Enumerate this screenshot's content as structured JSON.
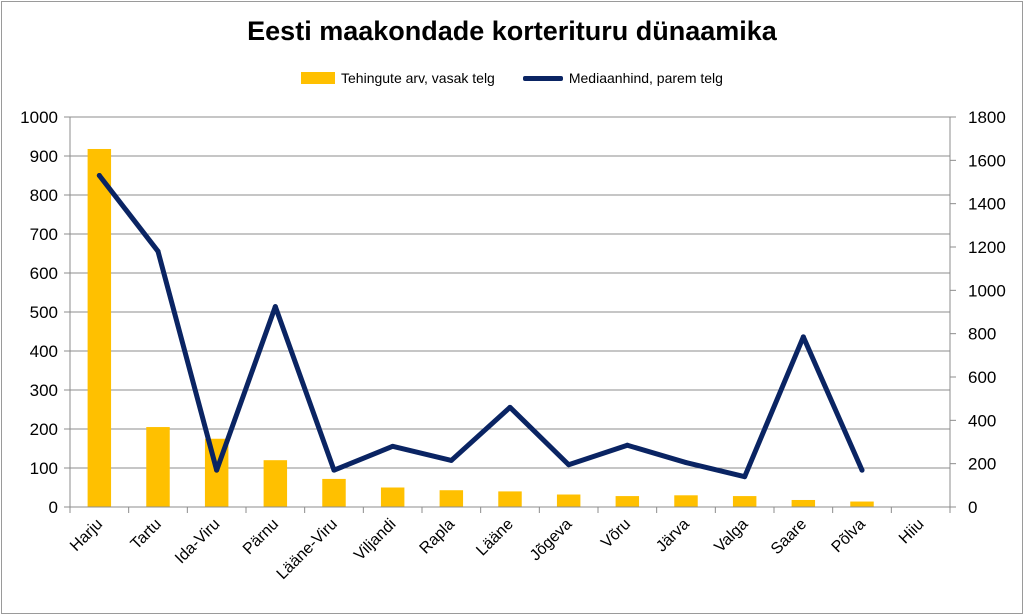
{
  "chart_data": {
    "type": "bar",
    "title": "Eesti maakondade korterituru dünaamika",
    "categories": [
      "Harju",
      "Tartu",
      "Ida-Viru",
      "Pärnu",
      "Lääne-Viru",
      "Viljandi",
      "Rapla",
      "Lääne",
      "Jõgeva",
      "Võru",
      "Järva",
      "Valga",
      "Saare",
      "Põlva",
      "Hiiu"
    ],
    "series": [
      {
        "name": "Tehingute arv, vasak telg",
        "type": "bar",
        "axis": "left",
        "color": "#ffc000",
        "values": [
          918,
          205,
          175,
          120,
          72,
          50,
          43,
          40,
          32,
          28,
          30,
          28,
          18,
          14,
          0
        ]
      },
      {
        "name": "Mediaanhind, parem telg",
        "type": "line",
        "axis": "right",
        "color": "#0a2463",
        "values": [
          1530,
          1180,
          170,
          925,
          170,
          280,
          215,
          460,
          195,
          285,
          205,
          140,
          785,
          170,
          null
        ]
      }
    ],
    "ylim_left": [
      0,
      1000
    ],
    "yticks_left": [
      "0",
      "100",
      "200",
      "300",
      "400",
      "500",
      "600",
      "700",
      "800",
      "900",
      "1000"
    ],
    "ylim_right": [
      0,
      1800
    ],
    "yticks_right": [
      "0",
      "200",
      "400",
      "600",
      "800",
      "1000",
      "1200",
      "1400",
      "1600",
      "1800"
    ],
    "grid": true,
    "legend_position": "top-center"
  }
}
